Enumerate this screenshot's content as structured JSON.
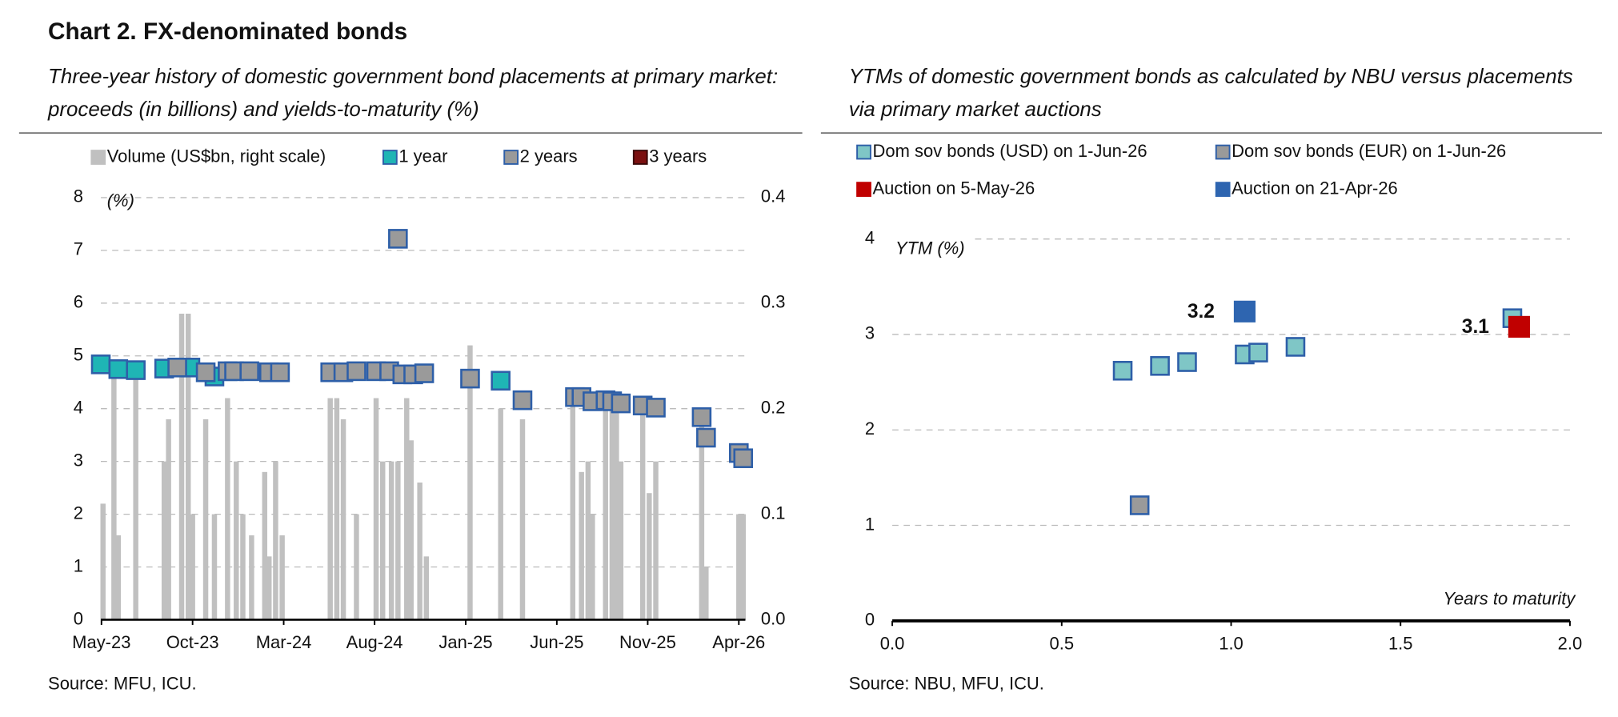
{
  "header": {
    "title": "Chart 2. FX-denominated bonds"
  },
  "chart_data": [
    {
      "type": "combo",
      "subtitle": [
        "Three-year history of domestic government bond placements at primary market:",
        "proceeds (in billions) and yields-to-maturity (%)"
      ],
      "ylabel": "(%)",
      "source": "Source: MFU, ICU.",
      "xlim": [
        2023.33,
        2026.28
      ],
      "xticks": [
        {
          "value": 2023.333,
          "label": "May-23"
        },
        {
          "value": 2023.75,
          "label": "Oct-23"
        },
        {
          "value": 2024.167,
          "label": "Mar-24"
        },
        {
          "value": 2024.583,
          "label": "Aug-24"
        },
        {
          "value": 2025.0,
          "label": "Jan-25"
        },
        {
          "value": 2025.417,
          "label": "Jun-25"
        },
        {
          "value": 2025.833,
          "label": "Nov-25"
        },
        {
          "value": 2026.25,
          "label": "Apr-26"
        }
      ],
      "ylim": [
        0,
        8
      ],
      "yticks": [
        0,
        1,
        2,
        3,
        4,
        5,
        6,
        7,
        8
      ],
      "y2lim": [
        0,
        0.4
      ],
      "y2ticks": [
        {
          "value": 0,
          "label": "0.0"
        },
        0.1,
        0.2,
        0.3,
        0.4
      ],
      "grid": true,
      "legend": "top",
      "series": [
        {
          "name": "Volume (US$bn, right scale)",
          "type": "bar",
          "axis": "y2",
          "color": "#c0c0c0",
          "x": [
            2023.34,
            2023.39,
            2023.41,
            2023.49,
            2023.62,
            2023.64,
            2023.7,
            2023.73,
            2023.75,
            2023.81,
            2023.85,
            2023.91,
            2023.95,
            2023.98,
            2024.02,
            2024.08,
            2024.1,
            2024.13,
            2024.16,
            2024.38,
            2024.41,
            2024.44,
            2024.5,
            2024.59,
            2024.62,
            2024.66,
            2024.69,
            2024.73,
            2024.75,
            2024.79,
            2024.82,
            2025.02,
            2025.16,
            2025.26,
            2025.49,
            2025.53,
            2025.56,
            2025.58,
            2025.64,
            2025.67,
            2025.69,
            2025.71,
            2025.81,
            2025.84,
            2025.87,
            2026.08,
            2026.1,
            2026.25,
            2026.27
          ],
          "values": [
            0.11,
            0.24,
            0.08,
            0.24,
            0.15,
            0.19,
            0.29,
            0.29,
            0.1,
            0.19,
            0.1,
            0.21,
            0.15,
            0.1,
            0.08,
            0.14,
            0.06,
            0.15,
            0.08,
            0.21,
            0.21,
            0.19,
            0.1,
            0.21,
            0.15,
            0.15,
            0.15,
            0.21,
            0.17,
            0.13,
            0.06,
            0.26,
            0.2,
            0.19,
            0.21,
            0.14,
            0.15,
            0.1,
            0.21,
            0.21,
            0.21,
            0.15,
            0.21,
            0.12,
            0.15,
            0.2,
            0.05,
            0.1,
            0.1
          ]
        },
        {
          "name": "1 year",
          "type": "scatter",
          "color": "#1fb5b5",
          "edgecolor": "#2e5fa8",
          "x": [
            2023.33,
            2023.41,
            2023.49,
            2023.62,
            2023.74,
            2023.85,
            2025.16
          ],
          "values": [
            4.84,
            4.75,
            4.73,
            4.76,
            4.78,
            4.61,
            4.53
          ]
        },
        {
          "name": "2 years",
          "type": "scatter",
          "color": "#9a9a9a",
          "edgecolor": "#2e5fa8",
          "x": [
            2023.68,
            2023.81,
            2023.91,
            2023.94,
            2024.01,
            2024.1,
            2024.15,
            2024.38,
            2024.44,
            2024.5,
            2024.59,
            2024.65,
            2024.69,
            2024.71,
            2024.76,
            2024.81,
            2025.02,
            2025.26,
            2025.5,
            2025.53,
            2025.58,
            2025.64,
            2025.67,
            2025.71,
            2025.81,
            2025.87,
            2026.08,
            2026.1,
            2026.25,
            2026.27
          ],
          "values": [
            4.78,
            4.69,
            4.71,
            4.71,
            4.71,
            4.69,
            4.69,
            4.69,
            4.69,
            4.71,
            4.71,
            4.71,
            7.22,
            4.65,
            4.65,
            4.67,
            4.57,
            4.16,
            4.22,
            4.22,
            4.14,
            4.16,
            4.14,
            4.1,
            4.06,
            4.02,
            3.84,
            3.45,
            3.16,
            3.06
          ]
        },
        {
          "name": "3 years",
          "type": "scatter",
          "color": "#7b1010",
          "edgecolor": "#3a0a0a",
          "x": [],
          "values": []
        }
      ]
    },
    {
      "type": "scatter",
      "subtitle": [
        "YTMs of domestic government bonds as calculated by NBU versus placements",
        "via primary market auctions"
      ],
      "ylabel": "YTM (%)",
      "xlabel": "Years to maturity",
      "source": "Source: NBU, MFU, ICU.",
      "xlim": [
        0,
        2
      ],
      "xticks": [
        {
          "value": 0,
          "label": "0.0"
        },
        {
          "value": 0.5,
          "label": "0.5"
        },
        {
          "value": 1,
          "label": "1.0"
        },
        {
          "value": 1.5,
          "label": "1.5"
        },
        {
          "value": 2,
          "label": "2.0"
        }
      ],
      "ylim": [
        0,
        4
      ],
      "yticks": [
        0,
        1,
        2,
        3,
        4
      ],
      "grid": true,
      "legend": "top",
      "series": [
        {
          "name": "Dom sov bonds (USD) on 1-Jun-26",
          "color": "#7fc6c6",
          "edgecolor": "#2e5fa8",
          "x": [
            0.68,
            0.79,
            0.87,
            1.04,
            1.08,
            1.19,
            1.83
          ],
          "values": [
            2.62,
            2.67,
            2.71,
            2.79,
            2.81,
            2.87,
            3.17
          ]
        },
        {
          "name": "Dom sov bonds (EUR) on 1-Jun-26",
          "color": "#9a9a9a",
          "edgecolor": "#2e5fa8",
          "x": [
            0.73
          ],
          "values": [
            1.21
          ]
        },
        {
          "name": "Auction on 5-May-26",
          "color": "#c00000",
          "edgecolor": "#c00000",
          "x": [
            1.85
          ],
          "values": [
            3.08
          ],
          "value_labels": [
            "3.1"
          ]
        },
        {
          "name": "Auction on 21-Apr-26",
          "color": "#2e65b0",
          "edgecolor": "#2e65b0",
          "x": [
            1.04
          ],
          "values": [
            3.24
          ],
          "value_labels": [
            "3.2"
          ]
        }
      ]
    }
  ]
}
